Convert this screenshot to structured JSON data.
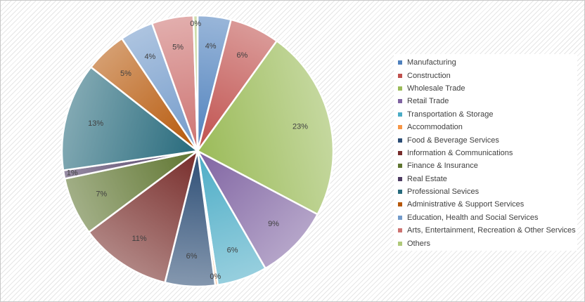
{
  "chart_data": {
    "type": "pie",
    "title": "",
    "slices": [
      {
        "label": "Manufacturing",
        "value": 4,
        "data_label": "4%",
        "color": "#4f81bd"
      },
      {
        "label": "Construction",
        "value": 6,
        "data_label": "6%",
        "color": "#c0504d"
      },
      {
        "label": "Wholesale Trade",
        "value": 23,
        "data_label": "23%",
        "color": "#9bbb59"
      },
      {
        "label": "Retail Trade",
        "value": 9,
        "data_label": "9%",
        "color": "#8064a2"
      },
      {
        "label": "Transportation & Storage",
        "value": 6,
        "data_label": "6%",
        "color": "#4bacc6"
      },
      {
        "label": "Accommodation",
        "value": 0.3,
        "data_label": "0%",
        "color": "#f79646"
      },
      {
        "label": "Food & Beverage Services",
        "value": 6,
        "data_label": "6%",
        "color": "#2c4d75"
      },
      {
        "label": "Information & Communications",
        "value": 11,
        "data_label": "11%",
        "color": "#772c2a"
      },
      {
        "label": "Finance & Insurance",
        "value": 7,
        "data_label": "7%",
        "color": "#5f7530"
      },
      {
        "label": "Real Estate",
        "value": 1,
        "data_label": "1%",
        "color": "#4d3b62"
      },
      {
        "label": "Professional Sevices",
        "value": 13,
        "data_label": "13%",
        "color": "#276a7c"
      },
      {
        "label": "Administrative & Support Services",
        "value": 5,
        "data_label": "5%",
        "color": "#b65708"
      },
      {
        "label": "Education, Health and Social Services",
        "value": 4,
        "data_label": "4%",
        "color": "#729aca"
      },
      {
        "label": "Arts, Entertainment, Recreation & Other Services",
        "value": 5,
        "data_label": "5%",
        "color": "#cd7371"
      },
      {
        "label": "Others",
        "value": 0.5,
        "data_label": "0%",
        "color": "#afc97a"
      }
    ],
    "legend_position": "right",
    "start_angle": "12 o'clock",
    "direction": "clockwise"
  }
}
